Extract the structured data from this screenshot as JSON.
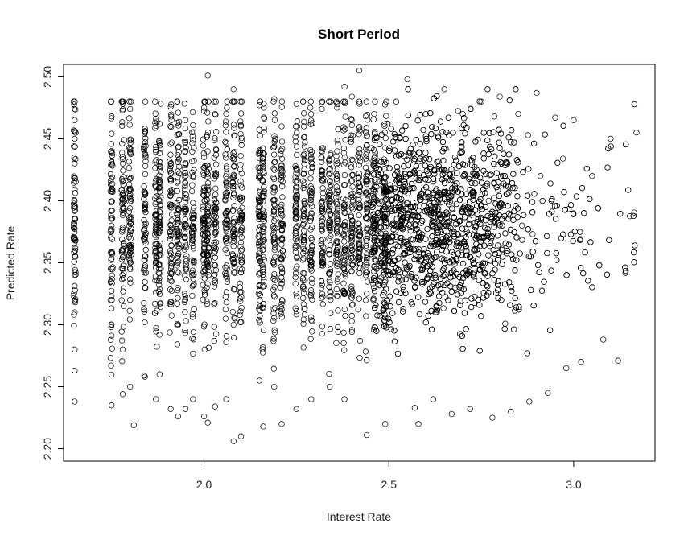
{
  "chart_data": {
    "type": "scatter",
    "title": "Short Period",
    "xlabel": "Interest Rate",
    "ylabel": "Predicted Rate",
    "xlim": [
      1.62,
      3.22
    ],
    "ylim": [
      2.19,
      2.51
    ],
    "x_ticks": [
      2.0,
      2.5,
      3.0
    ],
    "x_tick_labels": [
      "2.0",
      "2.5",
      "3.0"
    ],
    "y_ticks": [
      2.2,
      2.25,
      2.3,
      2.35,
      2.4,
      2.45,
      2.5
    ],
    "y_tick_labels": [
      "2.20",
      "2.25",
      "2.30",
      "2.35",
      "2.40",
      "2.45",
      "2.50"
    ],
    "grid": false,
    "legend": "none",
    "marker": "open-circle",
    "color": "#000000",
    "x_columns": [
      1.65,
      1.75,
      1.78,
      1.8,
      1.84,
      1.87,
      1.88,
      1.91,
      1.93,
      1.95,
      1.97,
      2.0,
      2.01,
      2.03,
      2.06,
      2.08,
      2.1,
      2.15,
      2.16,
      2.19,
      2.21,
      2.25,
      2.27,
      2.29,
      2.32,
      2.34,
      2.36,
      2.38,
      2.4,
      2.42,
      2.44,
      2.46,
      2.49
    ],
    "x_cloud_range": [
      2.45,
      3.17
    ],
    "y_band_center": 2.385,
    "y_band_spread": 0.06,
    "series": [
      {
        "x": [
          1.65,
          1.65,
          1.65,
          1.65,
          1.65,
          1.65,
          1.65,
          1.65,
          1.65,
          1.65,
          1.75,
          1.75,
          1.75,
          1.75,
          1.75,
          1.78,
          1.78,
          1.78,
          1.78,
          1.78,
          1.8,
          1.8,
          1.8,
          1.8,
          1.81,
          1.84,
          1.84,
          1.84,
          1.87,
          1.87,
          1.87,
          1.88,
          1.88,
          1.91,
          1.91,
          1.91,
          1.93,
          1.93,
          1.93,
          1.95,
          1.95,
          1.97,
          1.97,
          2.0,
          2.0,
          2.01,
          2.01,
          2.01,
          2.03,
          2.03,
          2.06,
          2.06,
          2.08,
          2.08,
          2.08,
          2.1,
          2.15,
          2.15,
          2.16,
          2.19,
          2.19,
          2.21,
          2.21,
          2.25,
          2.25,
          2.27,
          2.29,
          2.32,
          2.34,
          2.36,
          2.38,
          2.38,
          2.4,
          2.42,
          2.44,
          2.46,
          2.49,
          2.52,
          2.55,
          2.57,
          2.6,
          2.62,
          2.65,
          2.67,
          2.7,
          2.72,
          2.75,
          2.78,
          2.8,
          2.83,
          2.85,
          2.88,
          2.9,
          2.93,
          2.95,
          2.98,
          3.0,
          3.02,
          3.05,
          3.08,
          3.1,
          3.12,
          3.17,
          2.58,
          2.63,
          2.68,
          2.73,
          2.77,
          2.86,
          2.91
        ],
        "y": [
          2.465,
          2.45,
          2.43,
          2.4,
          2.37,
          2.34,
          2.31,
          2.28,
          2.263,
          2.238,
          2.468,
          2.44,
          2.38,
          2.3,
          2.235,
          2.478,
          2.43,
          2.36,
          2.28,
          2.244,
          2.474,
          2.41,
          2.32,
          2.25,
          2.219,
          2.455,
          2.33,
          2.258,
          2.466,
          2.35,
          2.24,
          2.462,
          2.26,
          2.476,
          2.38,
          2.232,
          2.471,
          2.3,
          2.226,
          2.465,
          2.232,
          2.461,
          2.24,
          2.475,
          2.226,
          2.501,
          2.35,
          2.221,
          2.47,
          2.234,
          2.47,
          2.24,
          2.49,
          2.3,
          2.206,
          2.21,
          2.477,
          2.255,
          2.218,
          2.482,
          2.25,
          2.46,
          2.22,
          2.478,
          2.232,
          2.46,
          2.24,
          2.48,
          2.25,
          2.475,
          2.492,
          2.24,
          2.484,
          2.505,
          2.211,
          2.47,
          2.22,
          2.48,
          2.498,
          2.233,
          2.47,
          2.24,
          2.49,
          2.228,
          2.47,
          2.232,
          2.48,
          2.225,
          2.484,
          2.23,
          2.47,
          2.238,
          2.487,
          2.245,
          2.467,
          2.265,
          2.465,
          2.27,
          2.42,
          2.288,
          2.45,
          2.271,
          2.455,
          2.22,
          2.31,
          2.33,
          2.36,
          2.4,
          2.38,
          2.42
        ]
      }
    ]
  }
}
